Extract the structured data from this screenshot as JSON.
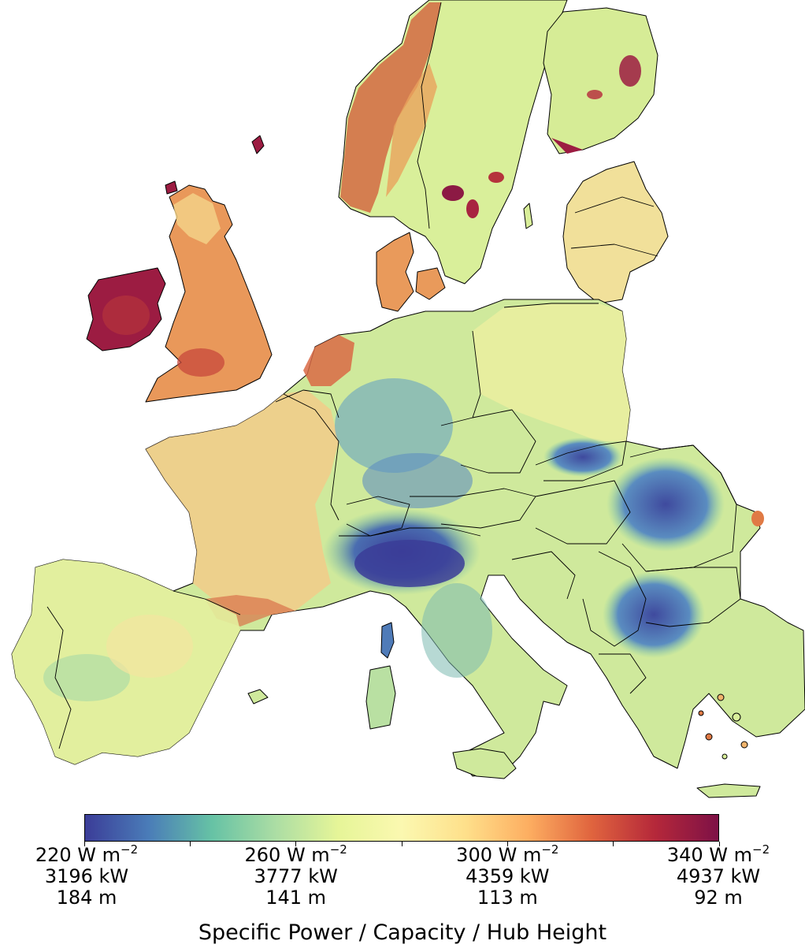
{
  "colorbar": {
    "title": "Specific Power / Capacity / Hub Height",
    "colormap": "Spectral_r",
    "stops": [
      "#3b3d98",
      "#4a7cb8",
      "#66c2a5",
      "#abdda4",
      "#e6f598",
      "#fbf8b0",
      "#fee08b",
      "#fdae61",
      "#e0643e",
      "#b5283a",
      "#7e1146"
    ],
    "ticks": [
      {
        "power_value": "220",
        "power_unit": "W m",
        "power_exp": "−2",
        "capacity": "3196 kW",
        "hub_height": "184 m"
      },
      {
        "power_value": "260",
        "power_unit": "W m",
        "power_exp": "−2",
        "capacity": "3777 kW",
        "hub_height": "141 m"
      },
      {
        "power_value": "300",
        "power_unit": "W m",
        "power_exp": "−2",
        "capacity": "4359 kW",
        "hub_height": "113 m"
      },
      {
        "power_value": "340",
        "power_unit": "W m",
        "power_exp": "−2",
        "capacity": "4937 kW",
        "hub_height": "92 m"
      }
    ],
    "range": [
      220,
      340
    ]
  },
  "map": {
    "colors": {
      "very_low": "#3f4a9e",
      "low": "#5b8cc0",
      "mid_low": "#8fcfa4",
      "mid": "#d9ef9a",
      "mid_high": "#f2e49a",
      "high": "#f0b36c",
      "very_high": "#9c1c42",
      "border": "#000000"
    }
  }
}
